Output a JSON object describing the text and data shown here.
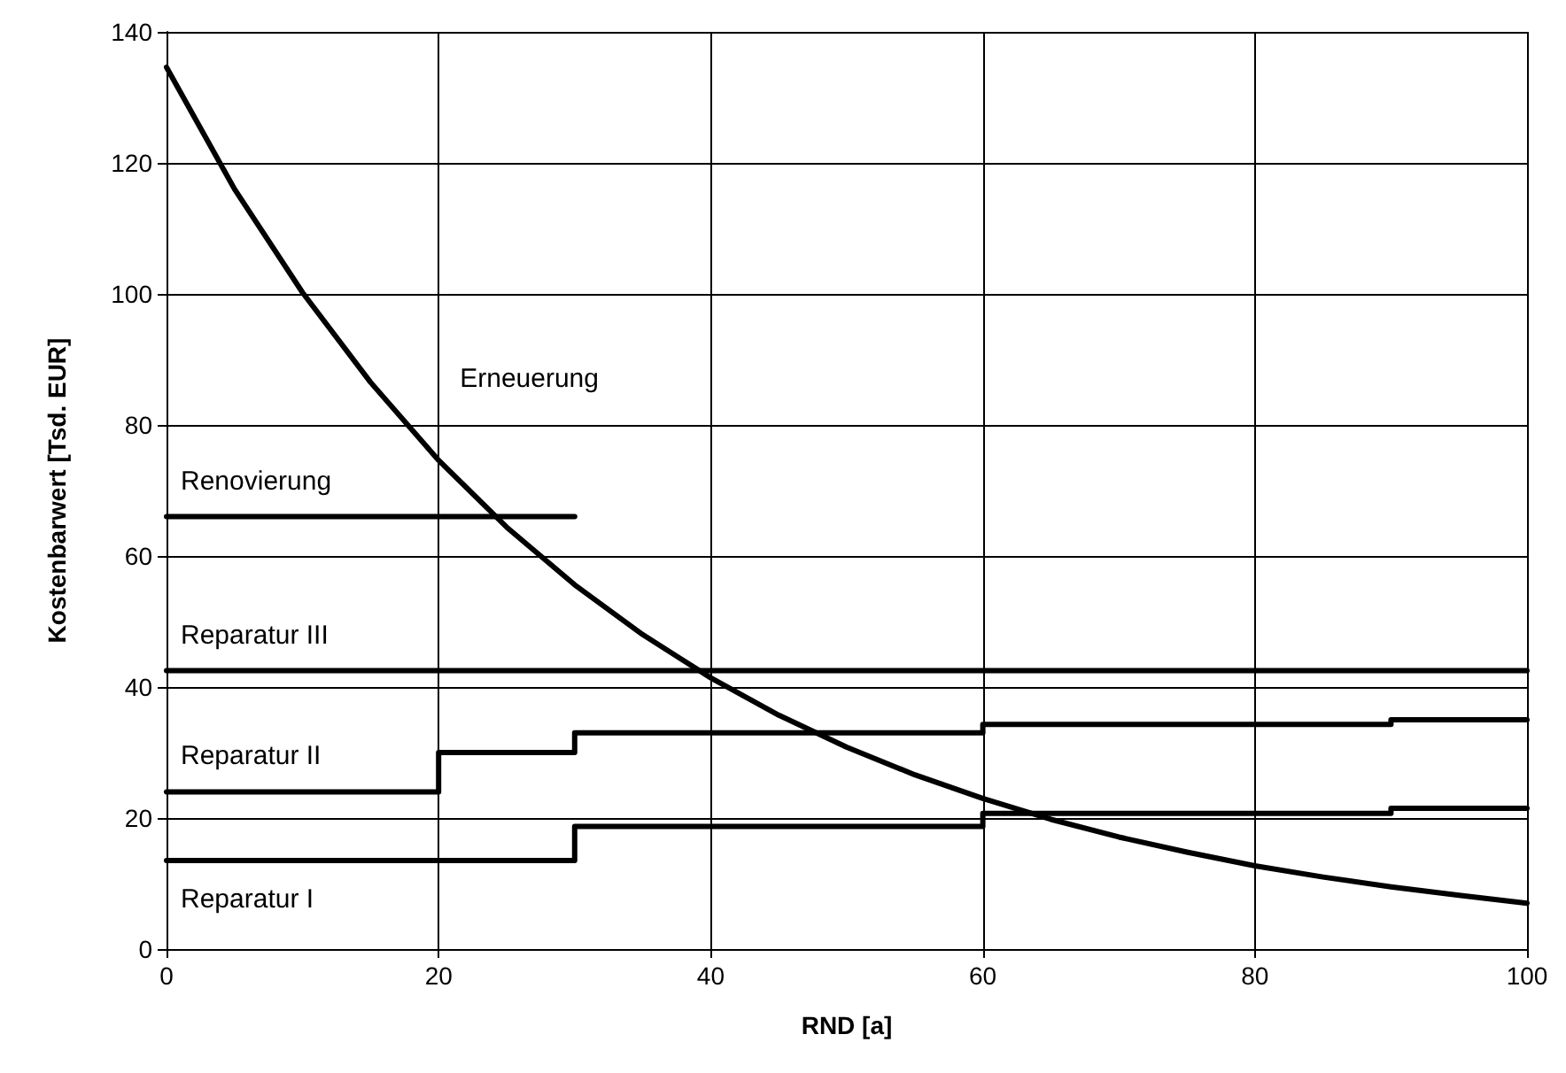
{
  "chart_data": {
    "type": "line",
    "xlabel": "RND [a]",
    "ylabel": "Kostenbarwert [Tsd. EUR]",
    "xlim": [
      0,
      100
    ],
    "ylim": [
      0,
      140
    ],
    "xticks": [
      0,
      20,
      40,
      60,
      80,
      100
    ],
    "yticks": [
      0,
      20,
      40,
      60,
      80,
      100,
      120,
      140
    ],
    "grid": true,
    "legend": false,
    "marker": "none",
    "series": [
      {
        "name": "Erneuerung",
        "type": "line",
        "color": "#000000",
        "x": [
          0,
          5,
          10,
          15,
          20,
          25,
          30,
          35,
          40,
          45,
          50,
          55,
          60,
          65,
          70,
          75,
          80,
          85,
          90,
          95,
          100
        ],
        "values": [
          134.6,
          116.0,
          100.2,
          86.5,
          74.6,
          64.4,
          55.6,
          48.0,
          41.4,
          35.7,
          30.8,
          26.6,
          23.0,
          19.8,
          17.1,
          14.8,
          12.7,
          11.0,
          9.5,
          8.2,
          7.0
        ]
      },
      {
        "name": "Renovierung",
        "type": "step",
        "color": "#000000",
        "x": [
          0,
          30
        ],
        "values": [
          66,
          66
        ]
      },
      {
        "name": "Reparatur III",
        "type": "step",
        "color": "#000000",
        "x": [
          0,
          100
        ],
        "values": [
          42.5,
          42.5
        ]
      },
      {
        "name": "Reparatur II",
        "type": "step",
        "color": "#000000",
        "x": [
          0,
          20,
          30,
          60,
          90,
          100
        ],
        "values": [
          24,
          30,
          33,
          34.3,
          35,
          35
        ]
      },
      {
        "name": "Reparatur I",
        "type": "step",
        "color": "#000000",
        "x": [
          0,
          30,
          60,
          90,
          100
        ],
        "values": [
          13.5,
          18.7,
          20.7,
          21.5,
          21.5
        ]
      }
    ]
  }
}
